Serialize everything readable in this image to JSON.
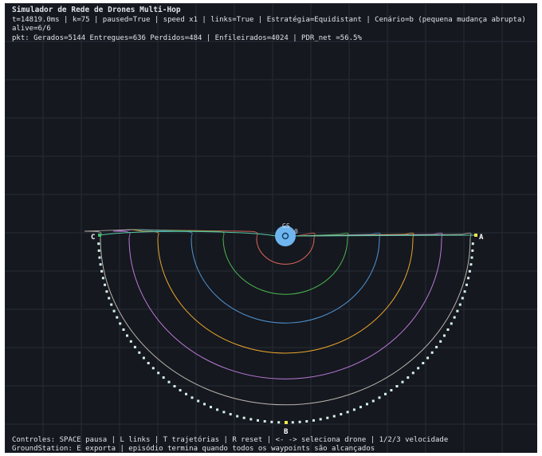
{
  "hud": {
    "title": "Simulador de Rede de Drones Multi-Hop",
    "status_line": "t=14819.0ms | k=75 | paused=True | speed x1 | links=True | Estratégia=Equidistant | Cenário=b (pequena mudança abrupta)",
    "alive_line": "alive=6/6",
    "packets_line": "pkt: Gerados=5144 Entregues=636 Perdidos=484 | Enfileirados=4024 | PDR_net =56.5%"
  },
  "footer": {
    "controls_line": "Controles: SPACE pausa | L links | T trajetórias | R reset | <- -> seleciona drone | 1/2/3 velocidade",
    "groundstation_line": "GroundStation: E exporta | episódio termina quando todos os waypoints são alcançados"
  },
  "map": {
    "waypoint_a": "A",
    "waypoint_b": "B",
    "waypoint_c": "C",
    "ground_station_label": "GS",
    "gs_inner_label": "0"
  },
  "colors": {
    "background": "#15181f",
    "grid": "#262b36",
    "ground_station": "#6fb5ef",
    "waypoint": "#f0ea4a",
    "path_marker": "#d6f2ea",
    "trajectory_colors": [
      "#e0685a",
      "#4cb84f",
      "#5296d6",
      "#e9a62c",
      "#bb7ad8",
      "#b9b3ac"
    ]
  }
}
